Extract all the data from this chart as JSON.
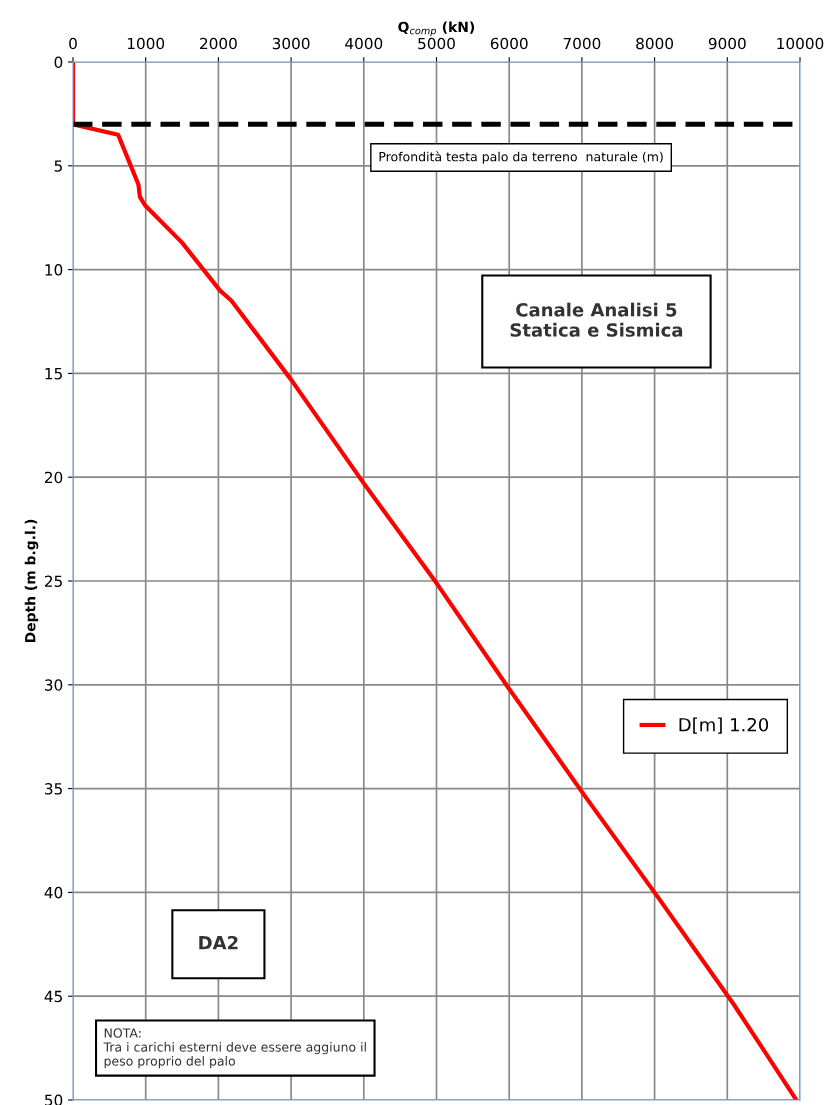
{
  "chart_data": {
    "type": "line",
    "xlabel": "Q$_{comp}$ (kN)",
    "ylabel": "Depth (m b.g.l.)",
    "xlim": [
      0,
      10000
    ],
    "xticks": [
      0,
      1000,
      2000,
      3000,
      4000,
      5000,
      6000,
      7000,
      8000,
      9000,
      10000
    ],
    "ylim": [
      50,
      0
    ],
    "yticks": [
      0,
      5,
      10,
      15,
      20,
      25,
      30,
      35,
      40,
      45,
      50
    ],
    "grid": true,
    "legend": "right",
    "line_style": "solid",
    "marker": "none",
    "series": [
      {
        "name": "D[m] 1.20",
        "color": "#ff0000",
        "x": [
          0,
          0,
          620,
          900,
          920,
          990,
          1500,
          2020,
          2180,
          3000,
          4000,
          5000,
          6000,
          7030,
          8060,
          9090,
          9950
        ],
        "values": [
          0,
          3,
          3.5,
          5.9,
          6.5,
          6.9,
          8.7,
          11.0,
          11.5,
          15.3,
          20.3,
          25.1,
          30.2,
          35.3,
          40.3,
          45.4,
          50
        ]
      }
    ],
    "ref_lines": [
      {
        "axis": "y",
        "value": 3,
        "label": "Profondità testa palo da terreno  naturale (m)",
        "color": "#000000",
        "line_style": "dashed"
      }
    ],
    "annotations": [
      "Canale Analisi 5\nStatica e Sismica",
      "DA2",
      "NOTA:\nTra i carichi esterni deve essere aggiuno il\npeso proprio del palo"
    ]
  }
}
